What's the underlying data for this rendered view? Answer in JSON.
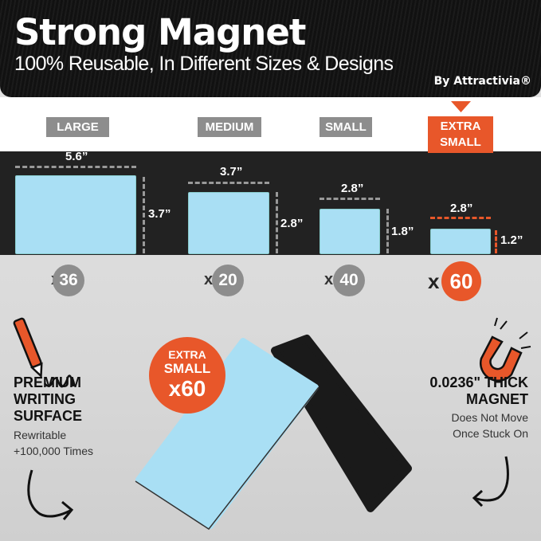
{
  "header": {
    "title": "Strong Magnet",
    "subtitle": "100% Reusable, In Different Sizes & Designs",
    "brand": "By Attractivia®"
  },
  "sizes": [
    {
      "label": "LARGE",
      "width": "5.6”",
      "height": "3.7”",
      "count_prefix": "x",
      "count": "36"
    },
    {
      "label": "MEDIUM",
      "width": "3.7”",
      "height": "2.8”",
      "count_prefix": "x",
      "count": "20"
    },
    {
      "label": "SMALL",
      "width": "2.8”",
      "height": "1.8”",
      "count_prefix": "x",
      "count": "40"
    },
    {
      "label_line1": "EXTRA",
      "label_line2": "SMALL",
      "width": "2.8”",
      "height": "1.2”",
      "count_prefix": "x",
      "count": "60"
    }
  ],
  "badge": {
    "line1": "EXTRA",
    "line2": "SMALL",
    "line3": "x60"
  },
  "left_feature": {
    "title_lines": [
      "PREMIUM",
      "WRITING",
      "SURFACE"
    ],
    "sub_lines": [
      "Rewritable",
      "+100,000 Times"
    ],
    "icon": "pen-icon"
  },
  "right_feature": {
    "title_lines": [
      "0.0236\" THICK",
      "MAGNET"
    ],
    "sub_lines": [
      "Does Not Move",
      "Once Stuck On"
    ],
    "icon": "magnet-icon"
  },
  "colors": {
    "accent": "#e8572a",
    "magnet_blue": "#a9dff4",
    "label_gray": "#8d8d8d",
    "dark": "#222222"
  }
}
